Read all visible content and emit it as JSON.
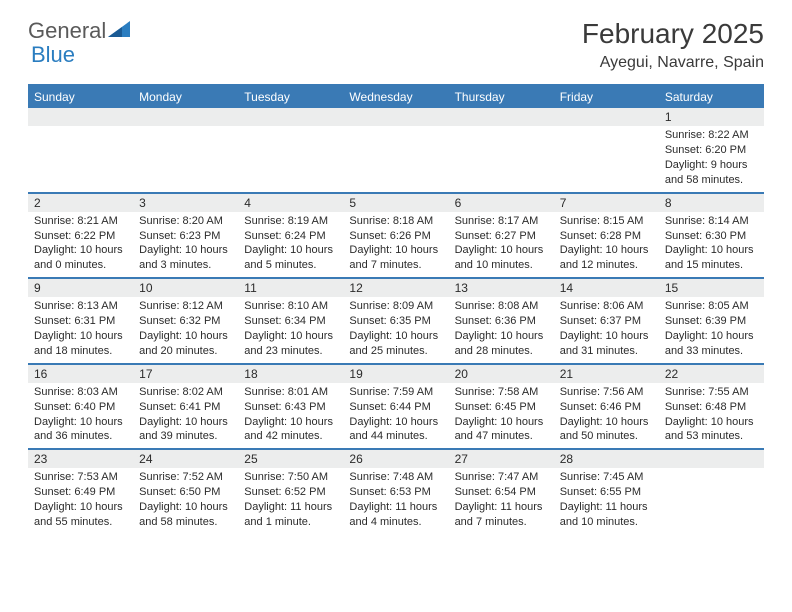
{
  "logo": {
    "text1": "General",
    "text2": "Blue"
  },
  "title": "February 2025",
  "location": "Ayegui, Navarre, Spain",
  "colors": {
    "header_bar": "#3a7ab5",
    "daynum_bg": "#eceded",
    "border": "#3a7ab5",
    "text": "#2b2b2b",
    "logo_gray": "#5a5a5a",
    "logo_blue": "#2a7dc0"
  },
  "dow": [
    "Sunday",
    "Monday",
    "Tuesday",
    "Wednesday",
    "Thursday",
    "Friday",
    "Saturday"
  ],
  "weeks": [
    [
      {
        "n": "",
        "sr": "",
        "ss": "",
        "dl": ""
      },
      {
        "n": "",
        "sr": "",
        "ss": "",
        "dl": ""
      },
      {
        "n": "",
        "sr": "",
        "ss": "",
        "dl": ""
      },
      {
        "n": "",
        "sr": "",
        "ss": "",
        "dl": ""
      },
      {
        "n": "",
        "sr": "",
        "ss": "",
        "dl": ""
      },
      {
        "n": "",
        "sr": "",
        "ss": "",
        "dl": ""
      },
      {
        "n": "1",
        "sr": "Sunrise: 8:22 AM",
        "ss": "Sunset: 6:20 PM",
        "dl": "Daylight: 9 hours and 58 minutes."
      }
    ],
    [
      {
        "n": "2",
        "sr": "Sunrise: 8:21 AM",
        "ss": "Sunset: 6:22 PM",
        "dl": "Daylight: 10 hours and 0 minutes."
      },
      {
        "n": "3",
        "sr": "Sunrise: 8:20 AM",
        "ss": "Sunset: 6:23 PM",
        "dl": "Daylight: 10 hours and 3 minutes."
      },
      {
        "n": "4",
        "sr": "Sunrise: 8:19 AM",
        "ss": "Sunset: 6:24 PM",
        "dl": "Daylight: 10 hours and 5 minutes."
      },
      {
        "n": "5",
        "sr": "Sunrise: 8:18 AM",
        "ss": "Sunset: 6:26 PM",
        "dl": "Daylight: 10 hours and 7 minutes."
      },
      {
        "n": "6",
        "sr": "Sunrise: 8:17 AM",
        "ss": "Sunset: 6:27 PM",
        "dl": "Daylight: 10 hours and 10 minutes."
      },
      {
        "n": "7",
        "sr": "Sunrise: 8:15 AM",
        "ss": "Sunset: 6:28 PM",
        "dl": "Daylight: 10 hours and 12 minutes."
      },
      {
        "n": "8",
        "sr": "Sunrise: 8:14 AM",
        "ss": "Sunset: 6:30 PM",
        "dl": "Daylight: 10 hours and 15 minutes."
      }
    ],
    [
      {
        "n": "9",
        "sr": "Sunrise: 8:13 AM",
        "ss": "Sunset: 6:31 PM",
        "dl": "Daylight: 10 hours and 18 minutes."
      },
      {
        "n": "10",
        "sr": "Sunrise: 8:12 AM",
        "ss": "Sunset: 6:32 PM",
        "dl": "Daylight: 10 hours and 20 minutes."
      },
      {
        "n": "11",
        "sr": "Sunrise: 8:10 AM",
        "ss": "Sunset: 6:34 PM",
        "dl": "Daylight: 10 hours and 23 minutes."
      },
      {
        "n": "12",
        "sr": "Sunrise: 8:09 AM",
        "ss": "Sunset: 6:35 PM",
        "dl": "Daylight: 10 hours and 25 minutes."
      },
      {
        "n": "13",
        "sr": "Sunrise: 8:08 AM",
        "ss": "Sunset: 6:36 PM",
        "dl": "Daylight: 10 hours and 28 minutes."
      },
      {
        "n": "14",
        "sr": "Sunrise: 8:06 AM",
        "ss": "Sunset: 6:37 PM",
        "dl": "Daylight: 10 hours and 31 minutes."
      },
      {
        "n": "15",
        "sr": "Sunrise: 8:05 AM",
        "ss": "Sunset: 6:39 PM",
        "dl": "Daylight: 10 hours and 33 minutes."
      }
    ],
    [
      {
        "n": "16",
        "sr": "Sunrise: 8:03 AM",
        "ss": "Sunset: 6:40 PM",
        "dl": "Daylight: 10 hours and 36 minutes."
      },
      {
        "n": "17",
        "sr": "Sunrise: 8:02 AM",
        "ss": "Sunset: 6:41 PM",
        "dl": "Daylight: 10 hours and 39 minutes."
      },
      {
        "n": "18",
        "sr": "Sunrise: 8:01 AM",
        "ss": "Sunset: 6:43 PM",
        "dl": "Daylight: 10 hours and 42 minutes."
      },
      {
        "n": "19",
        "sr": "Sunrise: 7:59 AM",
        "ss": "Sunset: 6:44 PM",
        "dl": "Daylight: 10 hours and 44 minutes."
      },
      {
        "n": "20",
        "sr": "Sunrise: 7:58 AM",
        "ss": "Sunset: 6:45 PM",
        "dl": "Daylight: 10 hours and 47 minutes."
      },
      {
        "n": "21",
        "sr": "Sunrise: 7:56 AM",
        "ss": "Sunset: 6:46 PM",
        "dl": "Daylight: 10 hours and 50 minutes."
      },
      {
        "n": "22",
        "sr": "Sunrise: 7:55 AM",
        "ss": "Sunset: 6:48 PM",
        "dl": "Daylight: 10 hours and 53 minutes."
      }
    ],
    [
      {
        "n": "23",
        "sr": "Sunrise: 7:53 AM",
        "ss": "Sunset: 6:49 PM",
        "dl": "Daylight: 10 hours and 55 minutes."
      },
      {
        "n": "24",
        "sr": "Sunrise: 7:52 AM",
        "ss": "Sunset: 6:50 PM",
        "dl": "Daylight: 10 hours and 58 minutes."
      },
      {
        "n": "25",
        "sr": "Sunrise: 7:50 AM",
        "ss": "Sunset: 6:52 PM",
        "dl": "Daylight: 11 hours and 1 minute."
      },
      {
        "n": "26",
        "sr": "Sunrise: 7:48 AM",
        "ss": "Sunset: 6:53 PM",
        "dl": "Daylight: 11 hours and 4 minutes."
      },
      {
        "n": "27",
        "sr": "Sunrise: 7:47 AM",
        "ss": "Sunset: 6:54 PM",
        "dl": "Daylight: 11 hours and 7 minutes."
      },
      {
        "n": "28",
        "sr": "Sunrise: 7:45 AM",
        "ss": "Sunset: 6:55 PM",
        "dl": "Daylight: 11 hours and 10 minutes."
      },
      {
        "n": "",
        "sr": "",
        "ss": "",
        "dl": ""
      }
    ]
  ]
}
